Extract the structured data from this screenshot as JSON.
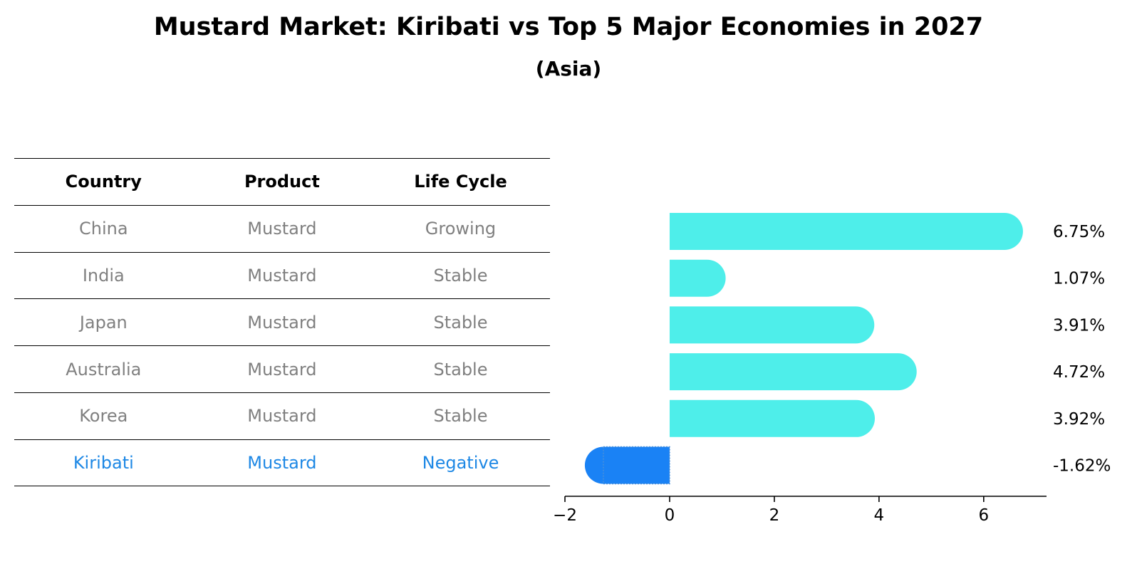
{
  "title": "Mustard Market: Kiribati vs Top 5 Major Economies in 2027",
  "subtitle": "(Asia)",
  "table": {
    "headers": [
      "Country",
      "Product",
      "Life Cycle"
    ],
    "rows": [
      [
        "China",
        "Mustard",
        "Growing"
      ],
      [
        "India",
        "Mustard",
        "Stable"
      ],
      [
        "Japan",
        "Mustard",
        "Stable"
      ],
      [
        "Australia",
        "Mustard",
        "Stable"
      ],
      [
        "Korea",
        "Mustard",
        "Stable"
      ],
      [
        "Kiribati",
        "Mustard",
        "Negative"
      ]
    ],
    "highlight_row_color": "#1e88e5",
    "text_color": "#808080"
  },
  "chart_data": {
    "type": "bar",
    "orientation": "horizontal",
    "categories": [
      "China",
      "India",
      "Japan",
      "Australia",
      "Korea",
      "Kiribati"
    ],
    "values": [
      6.75,
      1.07,
      3.91,
      4.72,
      3.92,
      -1.62
    ],
    "value_labels": [
      "6.75%",
      "1.07%",
      "3.91%",
      "4.72%",
      "3.92%",
      "-1.62%"
    ],
    "xlim": [
      -2,
      7.2
    ],
    "xticks": [
      -2,
      0,
      2,
      4,
      6
    ],
    "xtick_labels": [
      "−2",
      "0",
      "2",
      "4",
      "6"
    ],
    "grid": false,
    "colors": {
      "positive": "#4eeeea",
      "negative": "#1a82f5",
      "axis": "#000000"
    }
  }
}
